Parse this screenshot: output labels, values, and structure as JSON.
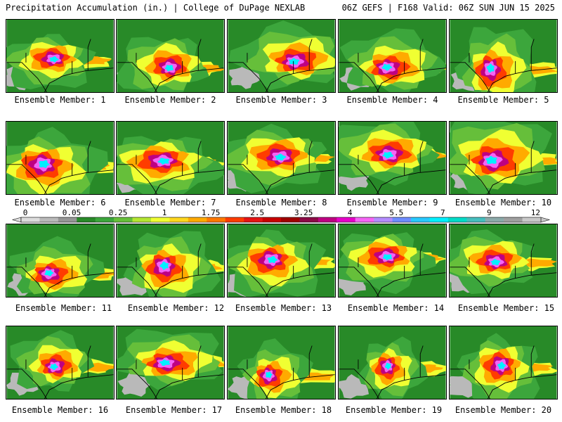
{
  "header": {
    "left": "Precipitation Accumulation (in.) | College of DuPage NEXLAB",
    "right": "06Z GEFS | F168 Valid: 06Z SUN JUN 15 2025"
  },
  "legend": {
    "tick_labels": [
      "0",
      "0.05",
      "0.25",
      "1",
      "1.75",
      "2.5",
      "3.25",
      "4",
      "5.5",
      "7",
      "9",
      "12"
    ],
    "colors": [
      "#dcdcdc",
      "#b9b9b9",
      "#969696",
      "#288a28",
      "#3ca63c",
      "#66bf3a",
      "#b4e632",
      "#f0ff32",
      "#ffd71e",
      "#ffaa00",
      "#ff7800",
      "#ff3c00",
      "#e61414",
      "#c80000",
      "#a00000",
      "#8c0a46",
      "#be0082",
      "#e600c8",
      "#f564f5",
      "#b48cff",
      "#6e8cff",
      "#28c8ff",
      "#00f0ff",
      "#00dcc8",
      "#46bebe",
      "#8caaaa",
      "#a0a0a0",
      "#c8c8c8"
    ]
  },
  "panels": [
    {
      "label": "Ensemble Member: 1"
    },
    {
      "label": "Ensemble Member: 2"
    },
    {
      "label": "Ensemble Member: 3"
    },
    {
      "label": "Ensemble Member: 4"
    },
    {
      "label": "Ensemble Member: 5"
    },
    {
      "label": "Ensemble Member: 6"
    },
    {
      "label": "Ensemble Member: 7"
    },
    {
      "label": "Ensemble Member: 8"
    },
    {
      "label": "Ensemble Member: 9"
    },
    {
      "label": "Ensemble Member: 10"
    },
    {
      "label": "Ensemble Member: 11"
    },
    {
      "label": "Ensemble Member: 12"
    },
    {
      "label": "Ensemble Member: 13"
    },
    {
      "label": "Ensemble Member: 14"
    },
    {
      "label": "Ensemble Member: 15"
    },
    {
      "label": "Ensemble Member: 16"
    },
    {
      "label": "Ensemble Member: 17"
    },
    {
      "label": "Ensemble Member: 18"
    },
    {
      "label": "Ensemble Member: 19"
    },
    {
      "label": "Ensemble Member: 20"
    }
  ]
}
